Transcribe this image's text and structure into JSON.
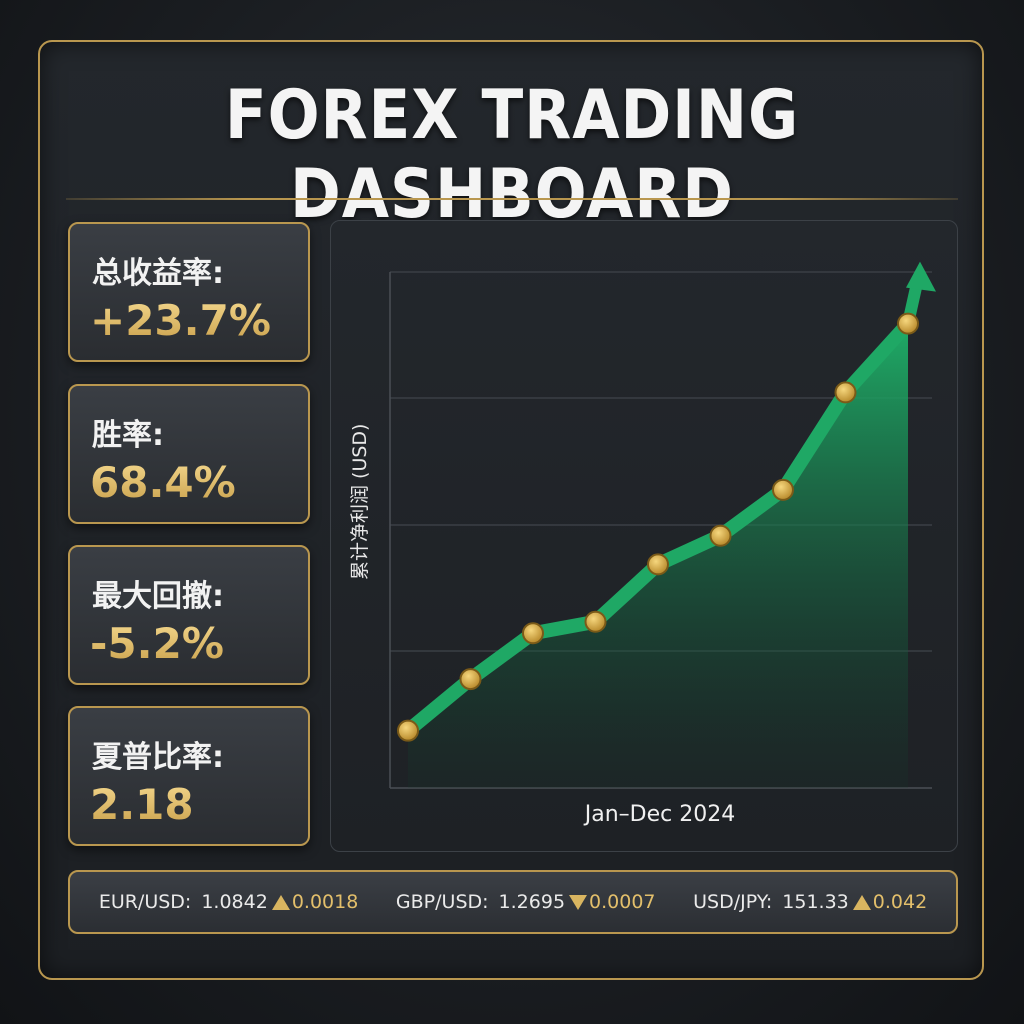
{
  "header": {
    "title": "FOREX TRADING DASHBOARD"
  },
  "stats": [
    {
      "label": "总收益率:",
      "value": "+23.7%"
    },
    {
      "label": "胜率:",
      "value": "68.4%"
    },
    {
      "label": "最大回撤:",
      "value": "-5.2%"
    },
    {
      "label": "夏普比率:",
      "value": "2.18"
    }
  ],
  "chart_data": {
    "type": "area",
    "title": "",
    "xlabel": "Jan–Dec 2024",
    "ylabel": "累计净利润 (USD)",
    "x": [
      1,
      2,
      3,
      4,
      5,
      6,
      7,
      8,
      9
    ],
    "values": [
      1.0,
      1.9,
      2.7,
      2.9,
      3.9,
      4.4,
      5.2,
      6.9,
      8.1
    ],
    "ylim": [
      0,
      9
    ],
    "grid": true,
    "colors": {
      "line": "#1fa865",
      "fill": "#1a9a5c",
      "marker": "#d8ad45"
    }
  },
  "ticker": [
    {
      "pair": "EUR/USD:",
      "price": "1.0842",
      "direction": "up",
      "change": "0.0018"
    },
    {
      "pair": "GBP/USD:",
      "price": "1.2695",
      "direction": "down",
      "change": "0.0007"
    },
    {
      "pair": "USD/JPY:",
      "price": "151.33",
      "direction": "up",
      "change": "0.042"
    }
  ],
  "colors": {
    "accent": "#b9974f",
    "gold": "#e3bf6b",
    "green": "#1fa865"
  }
}
